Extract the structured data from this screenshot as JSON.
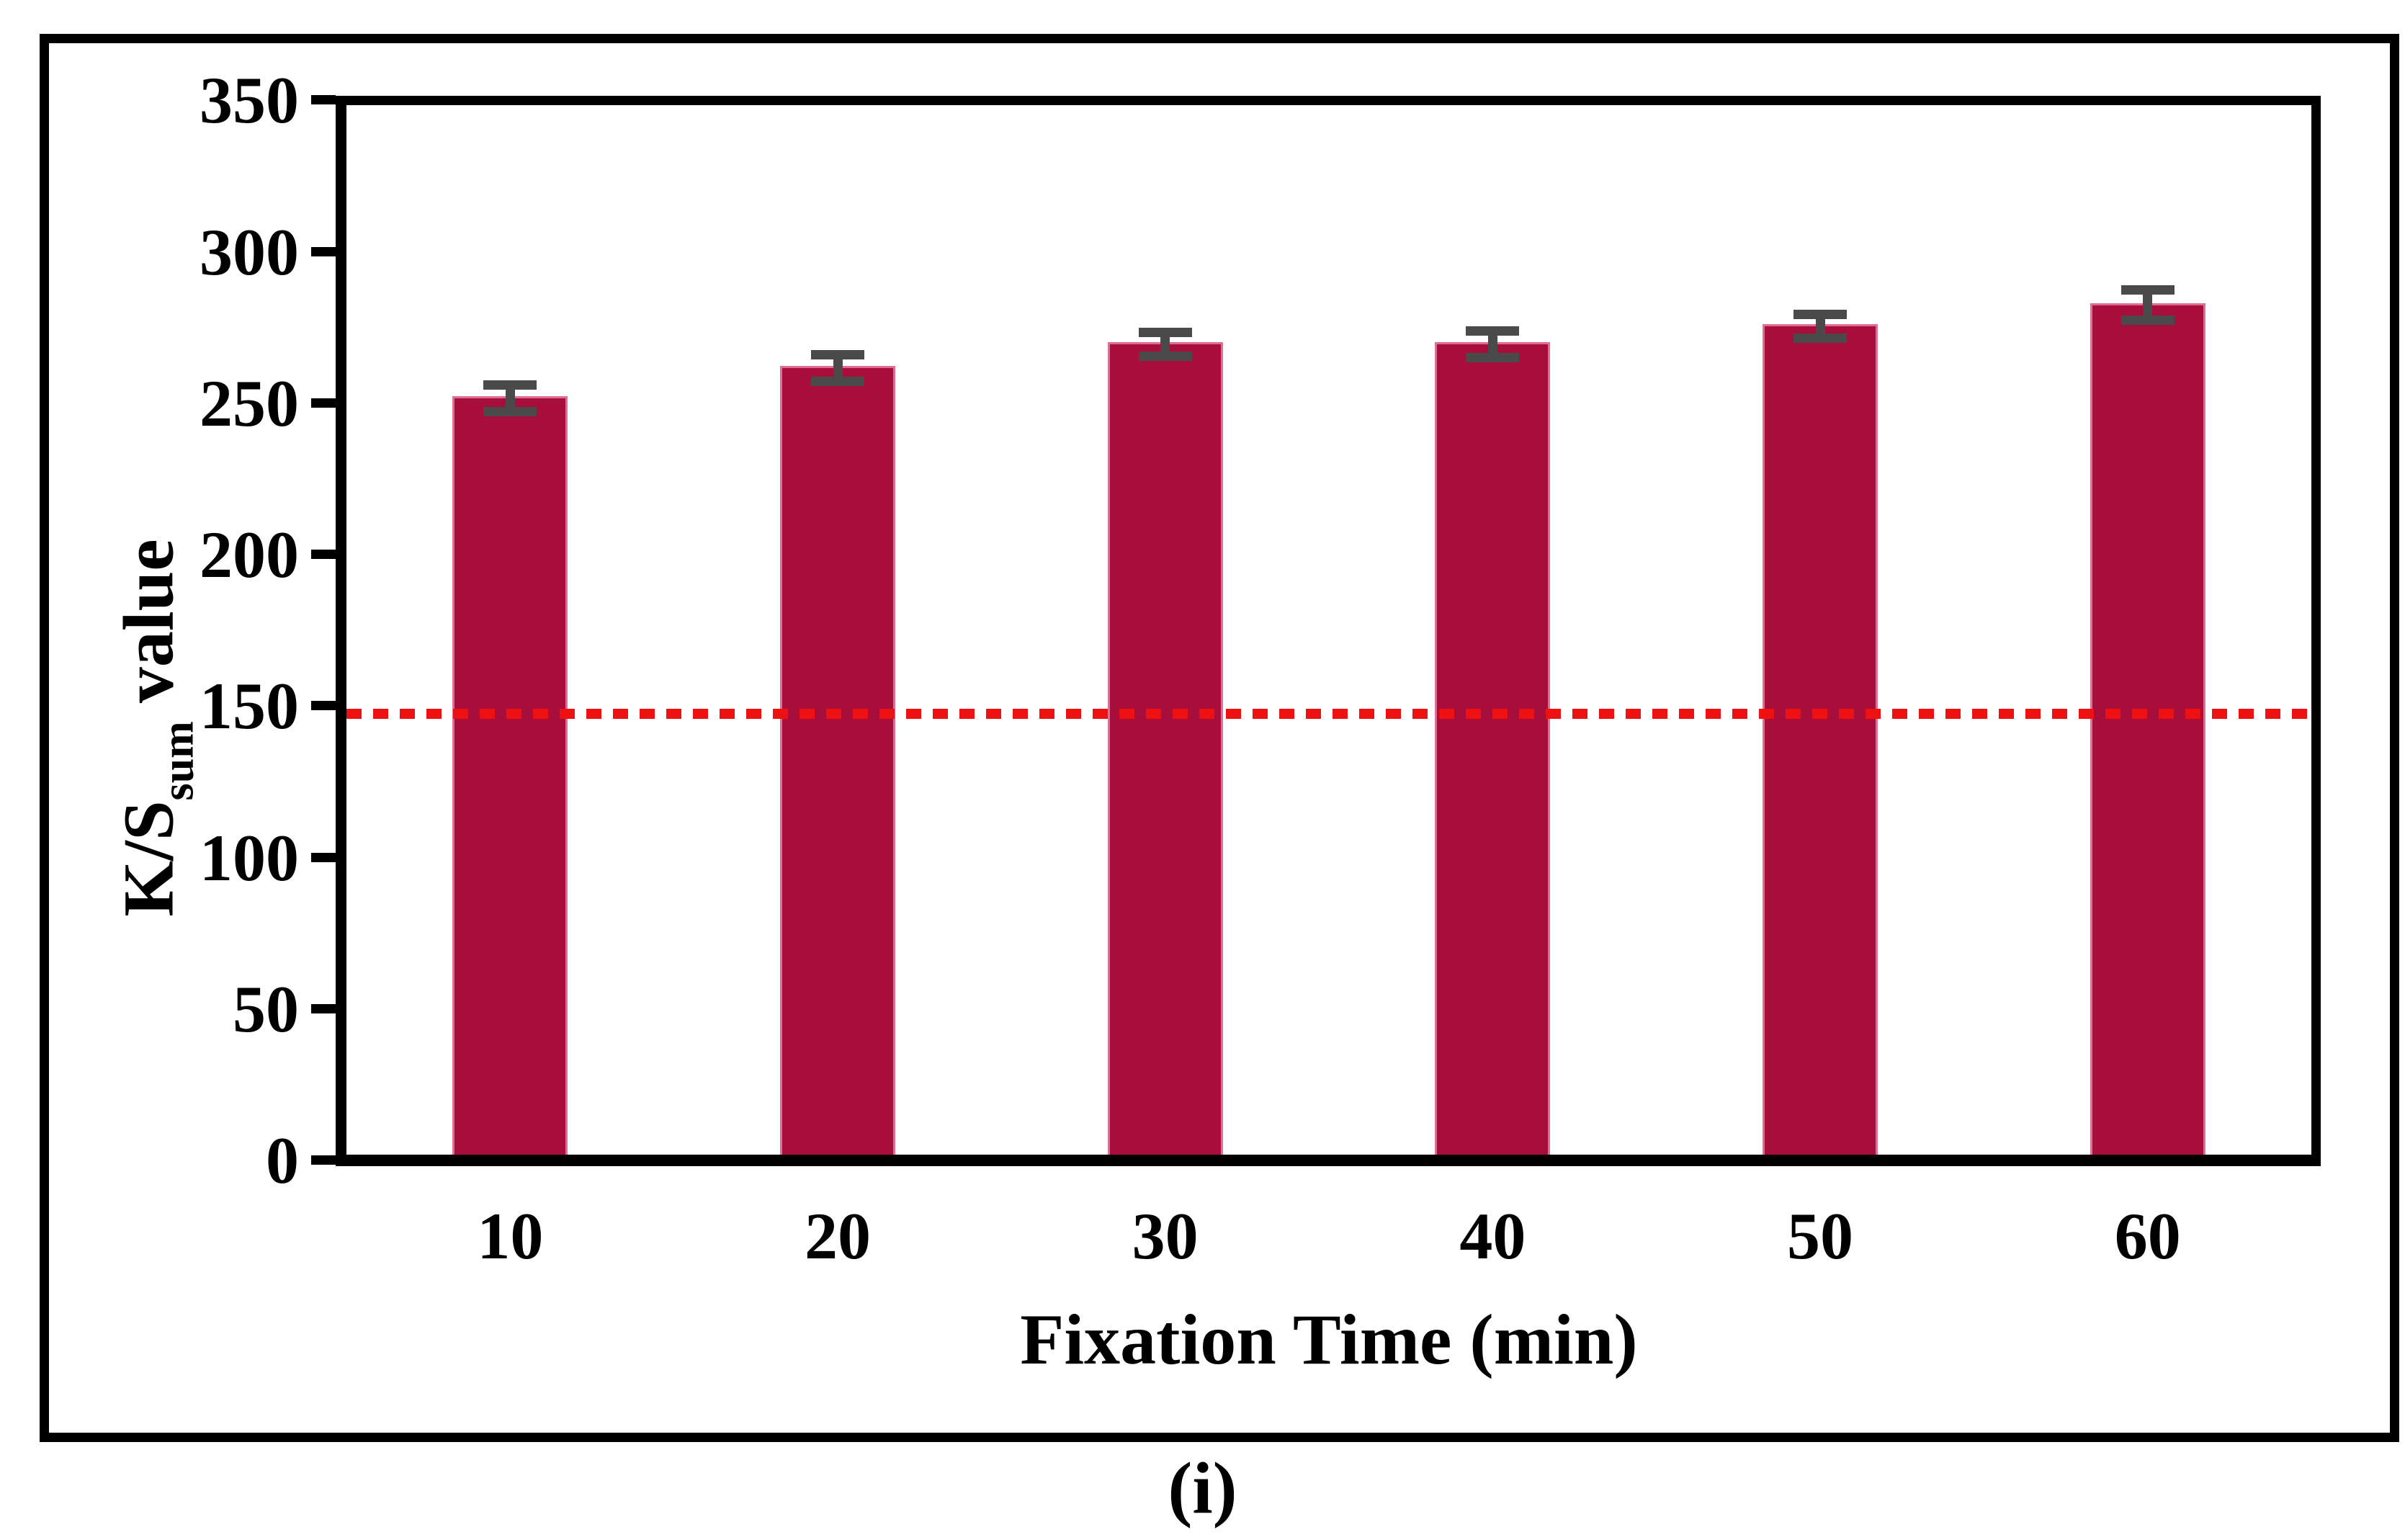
{
  "figure": {
    "caption": "(i)"
  },
  "chart_data": {
    "type": "bar",
    "title": "",
    "categories": [
      "10",
      "20",
      "30",
      "40",
      "50",
      "60"
    ],
    "values": [
      253,
      263,
      271,
      271,
      277,
      284
    ],
    "errors": [
      4.5,
      4.5,
      4,
      4.5,
      4,
      5
    ],
    "xlabel": "Fixation Time (min)",
    "ylabel": "K/S_sum value",
    "ylabel_parts": {
      "main": "K/S",
      "sub": "sum",
      "rest": " value"
    },
    "ylim": [
      0,
      350
    ],
    "yticks": [
      0,
      50,
      100,
      150,
      200,
      250,
      300,
      350
    ],
    "grid": "off",
    "legend": "none",
    "reference_line": {
      "value": 147,
      "style": "dotted",
      "color": "#EE1111"
    },
    "colors": {
      "bar_fill": "#A80E3C",
      "bar_edge": "#DE6E94",
      "error_bar": "#4A4A4A",
      "axis": "#000000"
    }
  }
}
